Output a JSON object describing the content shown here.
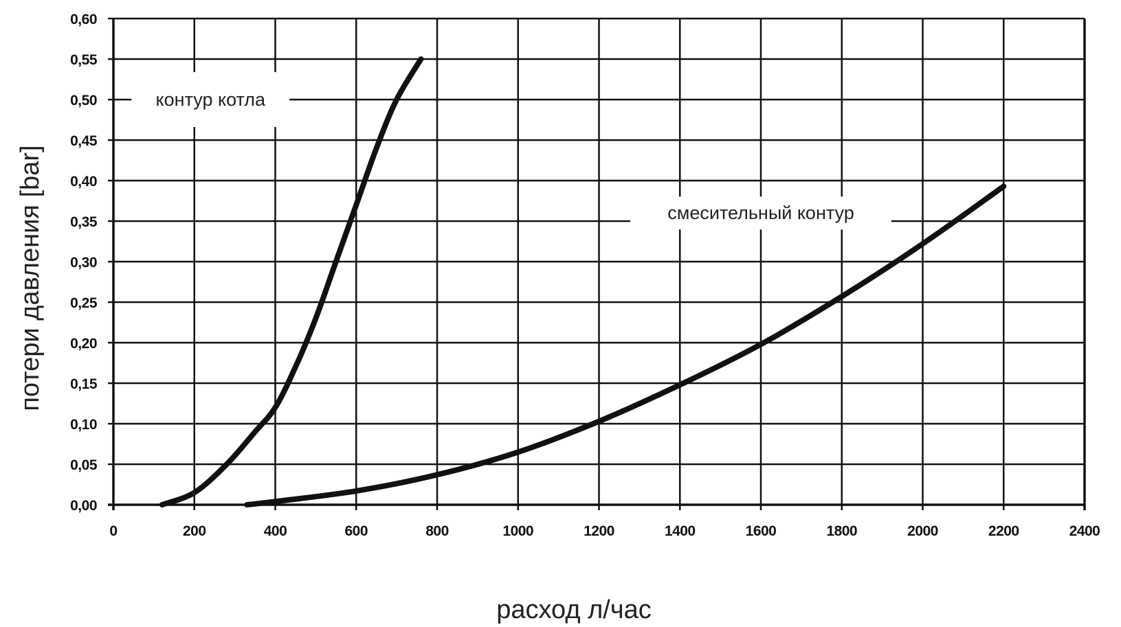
{
  "chart_data": {
    "type": "line",
    "xlabel": "расход л/час",
    "ylabel": "потери давления [bar]",
    "xlim": [
      0,
      2400
    ],
    "ylim": [
      0,
      0.6
    ],
    "x_ticks": [
      "0",
      "200",
      "400",
      "600",
      "800",
      "1000",
      "1200",
      "1400",
      "1600",
      "1800",
      "2000",
      "2200",
      "2400"
    ],
    "y_ticks": [
      "0,00",
      "0,05",
      "0,10",
      "0,15",
      "0,20",
      "0,25",
      "0,30",
      "0,35",
      "0,40",
      "0,45",
      "0,50",
      "0,55",
      "0,60"
    ],
    "grid": true,
    "legend": "none",
    "line_color": "#111111",
    "series": [
      {
        "name": "контур котла",
        "points": [
          [
            120,
            0.0
          ],
          [
            200,
            0.015
          ],
          [
            280,
            0.05
          ],
          [
            350,
            0.09
          ],
          [
            400,
            0.12
          ],
          [
            450,
            0.17
          ],
          [
            500,
            0.23
          ],
          [
            550,
            0.3
          ],
          [
            600,
            0.37
          ],
          [
            650,
            0.44
          ],
          [
            700,
            0.5
          ],
          [
            760,
            0.55
          ]
        ]
      },
      {
        "name": "смесительный контур",
        "points": [
          [
            330,
            0.0
          ],
          [
            400,
            0.004
          ],
          [
            600,
            0.017
          ],
          [
            800,
            0.037
          ],
          [
            1000,
            0.065
          ],
          [
            1200,
            0.103
          ],
          [
            1400,
            0.148
          ],
          [
            1600,
            0.198
          ],
          [
            1800,
            0.257
          ],
          [
            2000,
            0.322
          ],
          [
            2200,
            0.393
          ]
        ]
      }
    ]
  }
}
